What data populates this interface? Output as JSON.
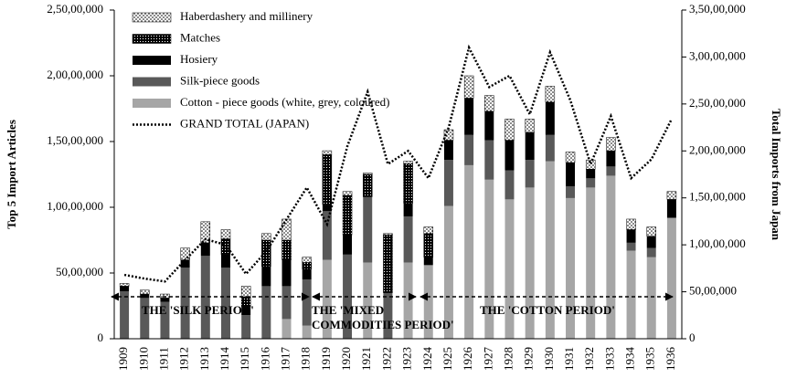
{
  "chart_data": {
    "type": "stacked-bar-line",
    "categories": [
      "1909",
      "1910",
      "1911",
      "1912",
      "1913",
      "1914",
      "1915",
      "1916",
      "1917",
      "1918",
      "1919",
      "1920",
      "1921",
      "1922",
      "1923",
      "1924",
      "1925",
      "1926",
      "1927",
      "1928",
      "1929",
      "1930",
      "1931",
      "1932",
      "1933",
      "1934",
      "1935",
      "1936"
    ],
    "y_label": "Top 5 Import Articles",
    "y2_label": "Total Imports from Japan",
    "ylim": [
      0,
      25000000
    ],
    "yticks": [
      0,
      {
        "value": 5000000,
        "label": "50,00,000"
      },
      {
        "value": 10000000,
        "label": "1,00,00,000"
      },
      {
        "value": 15000000,
        "label": "1,50,00,000"
      },
      {
        "value": 20000000,
        "label": "2,00,00,000"
      },
      {
        "value": 25000000,
        "label": "2,50,00,000"
      }
    ],
    "y2lim": [
      0,
      35000000
    ],
    "y2ticks": [
      0,
      {
        "value": 5000000,
        "label": "50,00,000"
      },
      {
        "value": 10000000,
        "label": "1,00,00,000"
      },
      {
        "value": 15000000,
        "label": "1,50,00,000"
      },
      {
        "value": 20000000,
        "label": "2,00,00,000"
      },
      {
        "value": 25000000,
        "label": "2,50,00,000"
      },
      {
        "value": 30000000,
        "label": "3,00,00,000"
      },
      {
        "value": 35000000,
        "label": "3,50,00,000"
      }
    ],
    "grid": true,
    "series": [
      {
        "name": "Cotton - piece goods (white, grey, coloured)",
        "color": "#a6a6a6",
        "values": [
          0,
          0,
          0,
          0,
          0,
          0,
          0,
          0,
          1500000,
          1000000,
          6000000,
          0,
          5800000,
          0,
          5800000,
          5600000,
          10100000,
          13200000,
          12100000,
          10600000,
          11500000,
          13500000,
          10700000,
          11500000,
          12400000,
          6700000,
          6200000,
          9200000
        ]
      },
      {
        "name": "Silk-piece goods",
        "color": "#595959",
        "values": [
          3600000,
          3100000,
          2800000,
          5400000,
          6300000,
          5400000,
          1800000,
          4000000,
          2500000,
          3500000,
          3700000,
          6400000,
          5000000,
          3500000,
          3500000,
          0,
          3500000,
          2300000,
          3000000,
          2200000,
          2100000,
          2000000,
          900000,
          700000,
          700000,
          600000,
          700000,
          0
        ]
      },
      {
        "name": "Hosiery",
        "color": "#000000",
        "values": [
          400000,
          300000,
          300000,
          600000,
          1000000,
          1000000,
          600000,
          1500000,
          2000000,
          800000,
          500000,
          1500000,
          0,
          0,
          1000000,
          600000,
          1500000,
          2800000,
          2200000,
          2300000,
          2100000,
          2500000,
          1800000,
          700000,
          1200000,
          1000000,
          900000,
          1400000
        ]
      },
      {
        "name": "Matches",
        "color": "#000000",
        "pattern": "checker",
        "values": [
          0,
          0,
          0,
          0,
          0,
          1200000,
          800000,
          2000000,
          1500000,
          500000,
          3800000,
          3000000,
          1700000,
          4400000,
          3000000,
          1800000,
          0,
          0,
          0,
          0,
          0,
          0,
          0,
          0,
          0,
          0,
          0,
          0
        ]
      },
      {
        "name": "Haberdashery and millinery",
        "color": "#000000",
        "pattern": "dots",
        "values": [
          200000,
          300000,
          300000,
          900000,
          1600000,
          700000,
          800000,
          500000,
          1600000,
          400000,
          300000,
          300000,
          100000,
          100000,
          200000,
          500000,
          800000,
          1700000,
          1200000,
          1600000,
          1000000,
          1200000,
          800000,
          700000,
          1000000,
          800000,
          700000,
          600000
        ]
      },
      {
        "name": "GRAND TOTAL (JAPAN)",
        "color": "#000000",
        "axis": "y2",
        "kind": "line",
        "values": [
          6800000,
          6400000,
          6100000,
          8400000,
          10600000,
          10000000,
          6900000,
          9300000,
          12700000,
          16100000,
          12200000,
          20500000,
          26300000,
          18600000,
          20000000,
          17100000,
          22500000,
          31000000,
          26800000,
          28000000,
          23900000,
          30500000,
          25400000,
          18600000,
          23700000,
          17100000,
          19100000,
          23400000
        ]
      }
    ],
    "annotations": [
      "THE 'SILK PERIOD'",
      "THE 'MIXED",
      "COMMODITIES PERIOD'",
      "THE 'COTTON PERIOD'"
    ]
  }
}
